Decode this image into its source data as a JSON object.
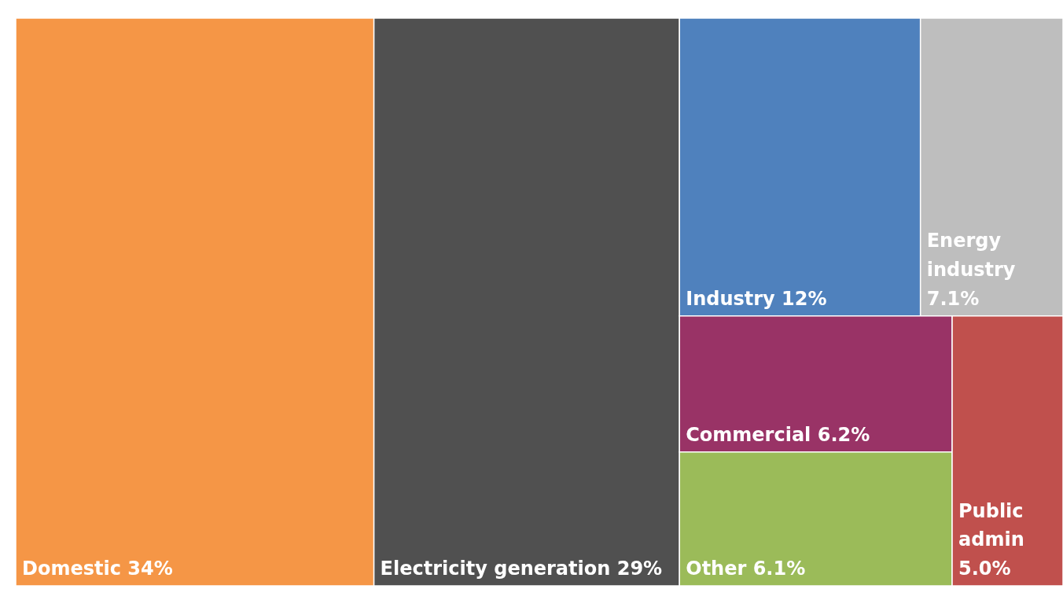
{
  "chart_data": {
    "type": "other",
    "categories": [
      "Domestic",
      "Electricity generation",
      "Industry",
      "Energy industry",
      "Commercial",
      "Other",
      "Public admin"
    ],
    "values": [
      34,
      29,
      12,
      7.1,
      6.2,
      6.1,
      5.0
    ],
    "value_labels": [
      "34%",
      "29%",
      "12%",
      "7.1%",
      "6.2%",
      "6.1%",
      "5.0%"
    ],
    "colors": [
      "#f59646",
      "#505050",
      "#4f81bd",
      "#bebebe",
      "#993366",
      "#9bbb59",
      "#c0504d"
    ]
  }
}
